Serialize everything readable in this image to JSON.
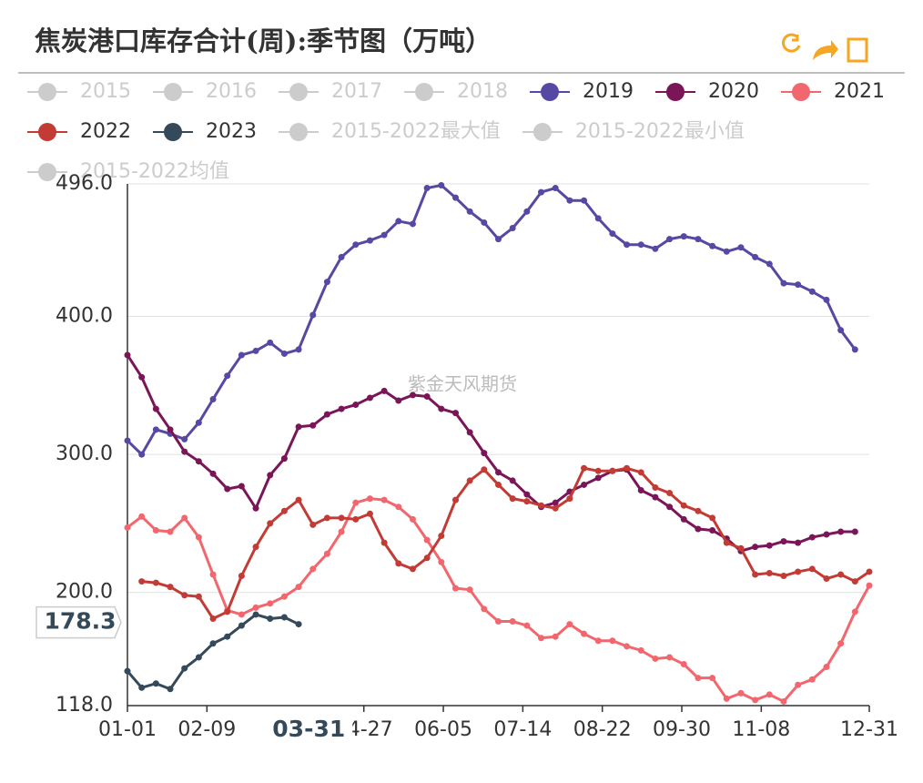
{
  "chart_data": {
    "type": "line",
    "title": "焦炭港口库存合计(周):季节图（万吨）",
    "watermark": "紫金天风期货",
    "pointer_x": {
      "value": 89,
      "label": "03-31"
    },
    "pointer_y": 178.3,
    "x": [
      0,
      7,
      14,
      21,
      28,
      35,
      42,
      49,
      56,
      63,
      70,
      77,
      84,
      91,
      98,
      105,
      112,
      119,
      126,
      133,
      140,
      147,
      154,
      161,
      168,
      175,
      182,
      189,
      196,
      203,
      210,
      217,
      224,
      231,
      238,
      245,
      252,
      259,
      266,
      273,
      280,
      287,
      294,
      301,
      308,
      315,
      322,
      329,
      336,
      343,
      350,
      357,
      364
    ],
    "xlim": [
      0,
      364
    ],
    "xticks": [
      {
        "value": 0,
        "label": "01-01"
      },
      {
        "value": 39,
        "label": "02-09"
      },
      {
        "value": 116,
        "label": "04-27"
      },
      {
        "value": 155,
        "label": "06-05"
      },
      {
        "value": 194,
        "label": "07-14"
      },
      {
        "value": 233,
        "label": "08-22"
      },
      {
        "value": 272,
        "label": "09-30"
      },
      {
        "value": 311,
        "label": "11-08"
      },
      {
        "value": 364,
        "label": "12-31"
      }
    ],
    "ylim": [
      118,
      496
    ],
    "yticks": [
      {
        "value": 118,
        "label": "118.0"
      },
      {
        "value": 200,
        "label": "200.0"
      },
      {
        "value": 300,
        "label": "300.0"
      },
      {
        "value": 400,
        "label": "400.0"
      },
      {
        "value": 496,
        "label": "496.0"
      }
    ],
    "grid": true,
    "series": [
      {
        "name": "2015",
        "color": "#cccccc",
        "visible": false
      },
      {
        "name": "2016",
        "color": "#cccccc",
        "visible": false
      },
      {
        "name": "2017",
        "color": "#cccccc",
        "visible": false
      },
      {
        "name": "2018",
        "color": "#cccccc",
        "visible": false
      },
      {
        "name": "2019",
        "color": "#5549a3",
        "visible": true,
        "values": [
          310,
          300,
          318,
          315,
          311,
          323,
          340,
          357,
          372,
          375,
          381,
          373,
          376,
          401,
          425,
          443,
          452,
          455,
          459,
          469,
          467,
          493,
          495,
          486,
          476,
          468,
          456,
          464,
          476,
          490,
          493,
          484,
          484,
          471,
          460,
          452,
          452,
          449,
          456,
          458,
          456,
          451,
          447,
          450,
          443,
          438,
          424,
          423,
          418,
          412,
          390,
          376,
          null
        ]
      },
      {
        "name": "2020",
        "color": "#7a1558",
        "visible": true,
        "values": [
          372,
          356,
          333,
          318,
          302,
          295,
          286,
          275,
          277,
          261,
          285,
          297,
          320,
          321,
          329,
          333,
          336,
          341,
          346,
          339,
          343,
          342,
          333,
          330,
          316,
          301,
          287,
          281,
          271,
          262,
          265,
          273,
          278,
          283,
          288,
          289,
          274,
          269,
          262,
          253,
          246,
          245,
          239,
          230,
          233,
          234,
          237,
          236,
          240,
          242,
          244,
          244,
          null
        ]
      },
      {
        "name": "2021",
        "color": "#f2676d",
        "visible": true,
        "values": [
          247,
          255,
          245,
          244,
          254,
          240,
          213,
          187,
          184,
          189,
          192,
          197,
          204,
          217,
          228,
          244,
          265,
          268,
          267,
          262,
          253,
          238,
          222,
          203,
          202,
          188,
          179,
          179,
          176,
          167,
          168,
          177,
          170,
          165,
          165,
          161,
          158,
          152,
          153,
          148,
          138,
          138,
          123,
          127,
          122,
          126,
          121,
          133,
          137,
          146,
          163,
          186,
          205
        ]
      },
      {
        "name": "2022",
        "color": "#c23b35",
        "visible": true,
        "values": [
          null,
          208,
          207,
          204,
          198,
          197,
          181,
          186,
          212,
          233,
          250,
          259,
          267,
          249,
          254,
          254,
          253,
          257,
          236,
          221,
          217,
          225,
          241,
          267,
          281,
          289,
          278,
          268,
          266,
          263,
          261,
          268,
          290,
          288,
          288,
          290,
          287,
          276,
          272,
          263,
          259,
          254,
          236,
          232,
          213,
          214,
          212,
          215,
          217,
          210,
          213,
          208,
          215
        ]
      },
      {
        "name": "2023",
        "color": "#34495a",
        "visible": true,
        "values": [
          143,
          131,
          134,
          130,
          145,
          153,
          163,
          168,
          176,
          184,
          181,
          182,
          177,
          null,
          null,
          null,
          null,
          null,
          null,
          null,
          null,
          null,
          null,
          null,
          null,
          null,
          null,
          null,
          null,
          null,
          null,
          null,
          null,
          null,
          null,
          null,
          null,
          null,
          null,
          null,
          null,
          null,
          null,
          null,
          null,
          null,
          null,
          null,
          null,
          null,
          null,
          null,
          null
        ]
      },
      {
        "name": "2015-2022最大值",
        "color": "#cccccc",
        "visible": false
      },
      {
        "name": "2015-2022最小值",
        "color": "#cccccc",
        "visible": false
      },
      {
        "name": "2015-2022均值",
        "color": "#cccccc",
        "visible": false
      }
    ]
  }
}
